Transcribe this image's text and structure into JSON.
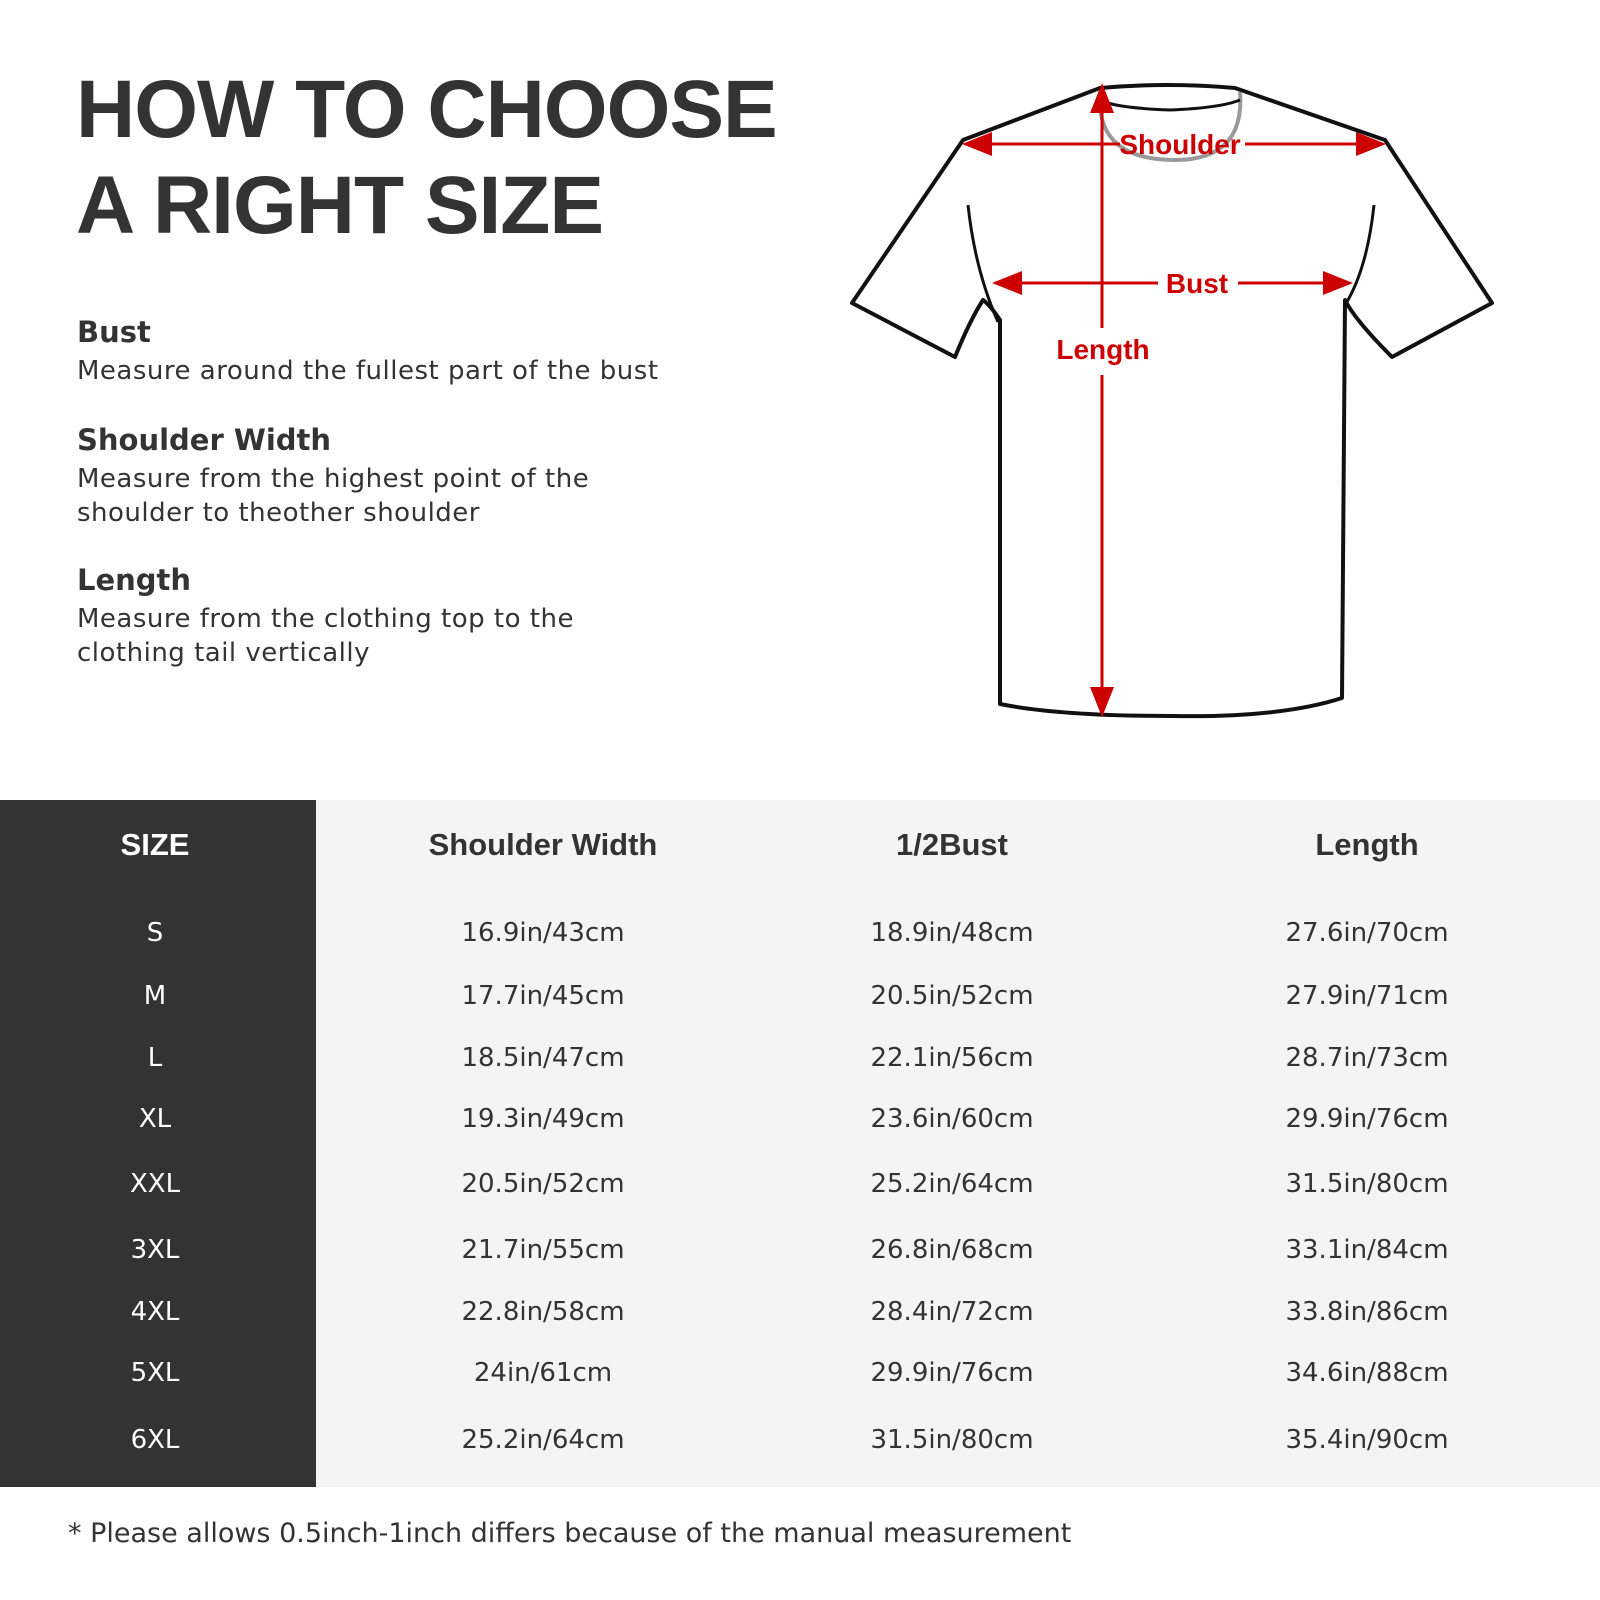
{
  "title": {
    "line1": "HOW TO CHOOSE",
    "line2": "A RIGHT SIZE"
  },
  "guide": [
    {
      "heading": "Bust",
      "lines": [
        "Measure around the fullest part of the bust"
      ]
    },
    {
      "heading": "Shoulder Width",
      "lines": [
        "Measure from the highest point of the",
        "shoulder to theother shoulder"
      ]
    },
    {
      "heading": "Length",
      "lines": [
        "Measure from the clothing top to the",
        "clothing tail vertically"
      ]
    }
  ],
  "diagram": {
    "shoulder_label": "Shoulder",
    "bust_label": "Bust",
    "length_label": "Length",
    "arrow_color": "#cc0000"
  },
  "table": {
    "headers": [
      "SIZE",
      "Shoulder Width",
      "1/2Bust",
      "Length"
    ],
    "rows": [
      [
        "S",
        "16.9in/43cm",
        "18.9in/48cm",
        "27.6in/70cm"
      ],
      [
        "M",
        "17.7in/45cm",
        "20.5in/52cm",
        "27.9in/71cm"
      ],
      [
        "L",
        "18.5in/47cm",
        "22.1in/56cm",
        "28.7in/73cm"
      ],
      [
        "XL",
        "19.3in/49cm",
        "23.6in/60cm",
        "29.9in/76cm"
      ],
      [
        "XXL",
        "20.5in/52cm",
        "25.2in/64cm",
        "31.5in/80cm"
      ],
      [
        "3XL",
        "21.7in/55cm",
        "26.8in/68cm",
        "33.1in/84cm"
      ],
      [
        "4XL",
        "22.8in/58cm",
        "28.4in/72cm",
        "33.8in/86cm"
      ],
      [
        "5XL",
        "24in/61cm",
        "29.9in/76cm",
        "34.6in/88cm"
      ],
      [
        "6XL",
        "25.2in/64cm",
        "31.5in/80cm",
        "35.4in/90cm"
      ]
    ]
  },
  "footnote": "* Please allows 0.5inch-1inch differs because of the  manual measurement"
}
